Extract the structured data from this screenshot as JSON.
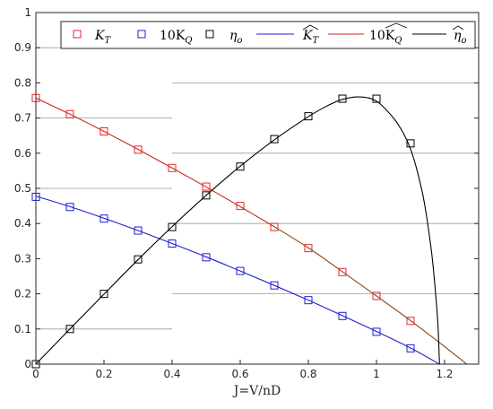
{
  "chart_data": {
    "type": "line",
    "title": "",
    "xlabel": "J=V/nD",
    "ylabel": "",
    "xlim": [
      0,
      1.3
    ],
    "ylim": [
      0,
      1.0
    ],
    "x_ticks": [
      0,
      0.2,
      0.4,
      0.6,
      0.8,
      1,
      1.2
    ],
    "x_tick_labels": [
      "0",
      "0.2",
      "0.4",
      "0.6",
      "0.8",
      "1",
      "1.2"
    ],
    "y_ticks": [
      0,
      0.1,
      0.2,
      0.3,
      0.4,
      0.5,
      0.6,
      0.7,
      0.8,
      0.9,
      1
    ],
    "y_tick_labels": [
      "0",
      "0.1",
      "0.2",
      "0.3",
      "0.4",
      "0.5",
      "0.6",
      "0.7",
      "0.8",
      "0.9",
      "1"
    ],
    "grid": "partial horizontal lines",
    "legend_position": "top",
    "legend": {
      "kt_measured": "K",
      "kt_measured_sub": "T",
      "kq_measured_prefix": "10K",
      "kq_measured_sub": "Q",
      "eta_measured": "η",
      "eta_measured_sub": "o",
      "kt_fit": "K",
      "kt_fit_sub": "T",
      "kq_fit_prefix": "10K",
      "kq_fit_sub": "Q",
      "eta_fit": "η",
      "eta_fit_sub": "o"
    },
    "colors": {
      "kt": "#e8262b",
      "kq": "#1f1fd0",
      "eta": "#000000",
      "kt_fit_line": "#1f1fd0",
      "kq_fit_line": "#c8261f",
      "eta_fit_line": "#000000",
      "overlap_line": "#8b4a12"
    },
    "series": [
      {
        "name": "K_T",
        "marker": "square",
        "x": [
          0,
          0.1,
          0.2,
          0.3,
          0.4,
          0.5,
          0.6,
          0.7,
          0.8,
          0.9,
          1.0,
          1.1
        ],
        "values": [
          0.757,
          0.711,
          0.662,
          0.61,
          0.558,
          0.505,
          0.45,
          0.39,
          0.33,
          0.262,
          0.194,
          0.123
        ]
      },
      {
        "name": "10K_Q",
        "marker": "square",
        "x": [
          0,
          0.1,
          0.2,
          0.3,
          0.4,
          0.5,
          0.6,
          0.7,
          0.8,
          0.9,
          1.0,
          1.1
        ],
        "values": [
          0.476,
          0.447,
          0.414,
          0.38,
          0.343,
          0.304,
          0.265,
          0.224,
          0.182,
          0.137,
          0.092,
          0.045
        ]
      },
      {
        "name": "eta_o",
        "marker": "square",
        "x": [
          0,
          0.1,
          0.2,
          0.3,
          0.4,
          0.5,
          0.6,
          0.7,
          0.8,
          0.9,
          1.0,
          1.1
        ],
        "values": [
          0,
          0.1,
          0.2,
          0.298,
          0.39,
          0.48,
          0.562,
          0.64,
          0.705,
          0.755,
          0.755,
          0.628
        ]
      },
      {
        "name": "K_T fit",
        "line": true,
        "x": [
          0,
          0.1,
          0.2,
          0.3,
          0.4,
          0.5,
          0.6,
          0.7,
          0.8,
          0.9,
          1.0,
          1.1,
          1.185
        ],
        "values": [
          0.478,
          0.448,
          0.415,
          0.38,
          0.343,
          0.305,
          0.265,
          0.224,
          0.182,
          0.138,
          0.093,
          0.046,
          0.0
        ]
      },
      {
        "name": "10K_Q fit",
        "line": true,
        "x": [
          0,
          0.1,
          0.2,
          0.3,
          0.4,
          0.5,
          0.6,
          0.7,
          0.8,
          0.9,
          1.0,
          1.1,
          1.2,
          1.265
        ],
        "values": [
          0.757,
          0.711,
          0.662,
          0.611,
          0.558,
          0.504,
          0.448,
          0.391,
          0.331,
          0.263,
          0.194,
          0.124,
          0.05,
          0.0
        ]
      },
      {
        "name": "eta_o fit",
        "line": true,
        "x": [
          0,
          0.1,
          0.2,
          0.3,
          0.4,
          0.5,
          0.6,
          0.7,
          0.8,
          0.85,
          0.9,
          0.95,
          1.0,
          1.05,
          1.08,
          1.1,
          1.12,
          1.14,
          1.16,
          1.17,
          1.18,
          1.185
        ],
        "values": [
          0,
          0.1,
          0.199,
          0.297,
          0.391,
          0.48,
          0.563,
          0.638,
          0.704,
          0.732,
          0.753,
          0.76,
          0.748,
          0.7,
          0.655,
          0.612,
          0.548,
          0.462,
          0.332,
          0.24,
          0.12,
          0.0
        ]
      }
    ]
  }
}
